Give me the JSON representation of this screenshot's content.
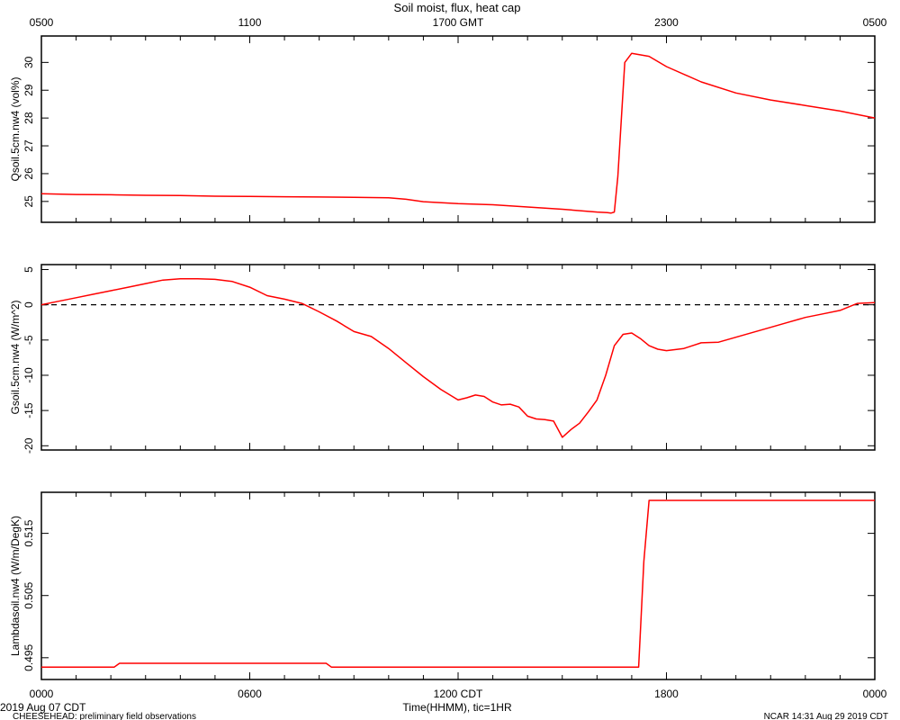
{
  "figure": {
    "title": "Soil moist, flux, heat cap",
    "date_label": "2019 Aug 07 CDT",
    "project_label": "CHEESEHEAD: preliminary field observations",
    "ncar_label": "NCAR 14:31 Aug 29 2019 CDT",
    "xlabel": "Time(HHMM), tic=1HR"
  },
  "colors": {
    "series": "#ff0000",
    "axis": "#000000",
    "zero_line": "#000000"
  },
  "chart_data": [
    {
      "type": "line",
      "ylabel": "Qsoil.5cm.nw4 (vol%)",
      "ylim": [
        24.25,
        30.95
      ],
      "yticks": [
        25,
        26,
        27,
        28,
        29,
        30
      ],
      "top_axis": {
        "ticks": [
          0,
          6,
          12,
          18,
          24
        ],
        "labels": [
          "0500",
          "1100",
          "1700 GMT",
          "2300",
          "0500"
        ]
      },
      "xlim": [
        0,
        24
      ],
      "series": [
        {
          "x": [
            0,
            1,
            2,
            3,
            4,
            5,
            6,
            7,
            8,
            9,
            10,
            10.5,
            11,
            12,
            13,
            14,
            15,
            16,
            16.3,
            16.4,
            16.5,
            16.6,
            16.8,
            17,
            17.5,
            18,
            19,
            20,
            21,
            22,
            23,
            24
          ],
          "y": [
            25.28,
            25.25,
            25.24,
            25.22,
            25.21,
            25.19,
            25.18,
            25.17,
            25.16,
            25.15,
            25.13,
            25.08,
            24.99,
            24.92,
            24.88,
            24.8,
            24.72,
            24.62,
            24.6,
            24.58,
            24.62,
            25.9,
            30.0,
            30.33,
            30.22,
            29.85,
            29.3,
            28.9,
            28.65,
            28.45,
            28.25,
            28.0
          ]
        }
      ]
    },
    {
      "type": "line",
      "ylabel": "Gsoil.5cm.nw4 (W/m^2)",
      "ylim": [
        -20.6,
        5.7
      ],
      "yticks": [
        5,
        0,
        -5,
        -10,
        -15,
        -20
      ],
      "zero_line": true,
      "xlim": [
        0,
        24
      ],
      "series": [
        {
          "x": [
            0,
            0.5,
            1,
            1.5,
            2,
            2.5,
            3,
            3.5,
            4,
            4.5,
            5,
            5.5,
            6,
            6.5,
            7,
            7.5,
            8,
            8.5,
            9,
            9.5,
            10,
            10.5,
            11,
            11.5,
            12,
            12.25,
            12.5,
            12.75,
            13,
            13.25,
            13.5,
            13.75,
            14,
            14.25,
            14.5,
            14.75,
            15,
            15.25,
            15.5,
            15.75,
            16,
            16.25,
            16.5,
            16.75,
            17,
            17.25,
            17.5,
            17.75,
            18,
            18.5,
            19,
            19.5,
            20,
            20.5,
            21,
            21.5,
            22,
            22.5,
            23,
            23.5,
            24
          ],
          "y": [
            0,
            0.5,
            1,
            1.5,
            2,
            2.5,
            3,
            3.5,
            3.7,
            3.7,
            3.6,
            3.3,
            2.5,
            1.3,
            0.8,
            0.2,
            -1,
            -2.3,
            -3.8,
            -4.5,
            -6.2,
            -8.2,
            -10.2,
            -12,
            -13.5,
            -13.2,
            -12.8,
            -13,
            -13.8,
            -14.2,
            -14.1,
            -14.5,
            -15.8,
            -16.2,
            -16.3,
            -16.5,
            -18.8,
            -17.7,
            -16.8,
            -15.2,
            -13.5,
            -10,
            -5.8,
            -4.2,
            -4,
            -4.8,
            -5.8,
            -6.3,
            -6.5,
            -6.2,
            -5.4,
            -5.3,
            -4.6,
            -3.9,
            -3.2,
            -2.5,
            -1.8,
            -1.3,
            -0.8,
            0.2,
            0.3
          ]
        }
      ]
    },
    {
      "type": "line",
      "ylabel": "Lambdasoil.nw4 (W/m/DegK)",
      "ylim": [
        0.4915,
        0.5216
      ],
      "yticks": [
        0.495,
        0.505,
        0.515
      ],
      "yticklabels": [
        "0.495",
        "0.505",
        "0.515"
      ],
      "bottom_axis": {
        "ticks": [
          0,
          6,
          12,
          18,
          24
        ],
        "labels": [
          "0000",
          "0600",
          "1200 CDT",
          "1800",
          "0000"
        ]
      },
      "xlim": [
        0,
        24
      ],
      "series": [
        {
          "x": [
            0,
            2.1,
            2.25,
            8.2,
            8.35,
            17.2,
            17.35,
            17.5,
            24
          ],
          "y": [
            0.4935,
            0.4935,
            0.4941,
            0.4941,
            0.4935,
            0.4935,
            0.5105,
            0.5203,
            0.5203
          ]
        }
      ]
    }
  ]
}
